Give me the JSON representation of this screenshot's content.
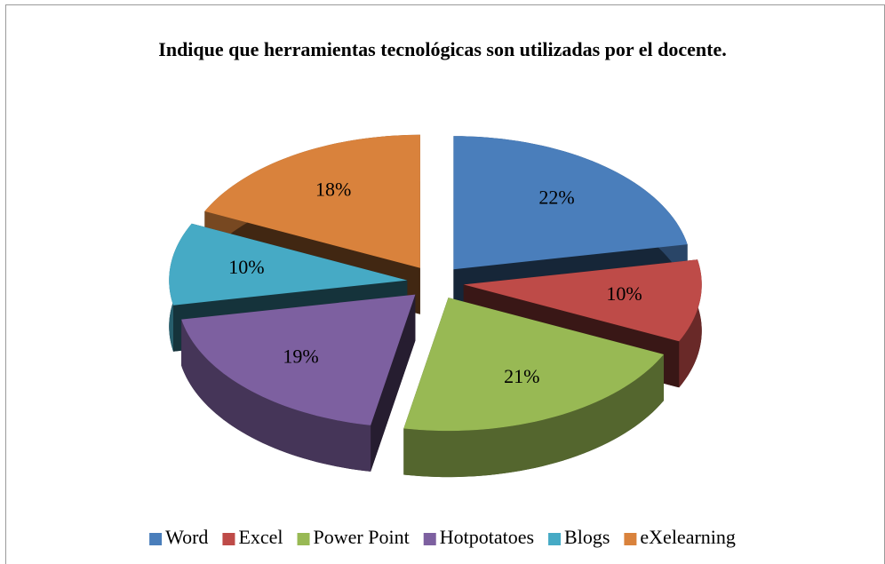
{
  "chart_data": {
    "type": "pie",
    "title": "Indique que herramientas tecnológicas son utilizadas por el docente.",
    "categories": [
      "Word",
      "Excel",
      "Power Point",
      "Hotpotatoes",
      "Blogs",
      "eXelearning"
    ],
    "values": [
      22,
      10,
      21,
      19,
      10,
      18
    ],
    "value_labels": [
      "22%",
      "10%",
      "21%",
      "19%",
      "10%",
      "18%"
    ],
    "colors": [
      "#4a7ebb",
      "#be4b48",
      "#98b954",
      "#7d60a0",
      "#46aac5",
      "#d9823c"
    ],
    "legend": "bottom"
  }
}
